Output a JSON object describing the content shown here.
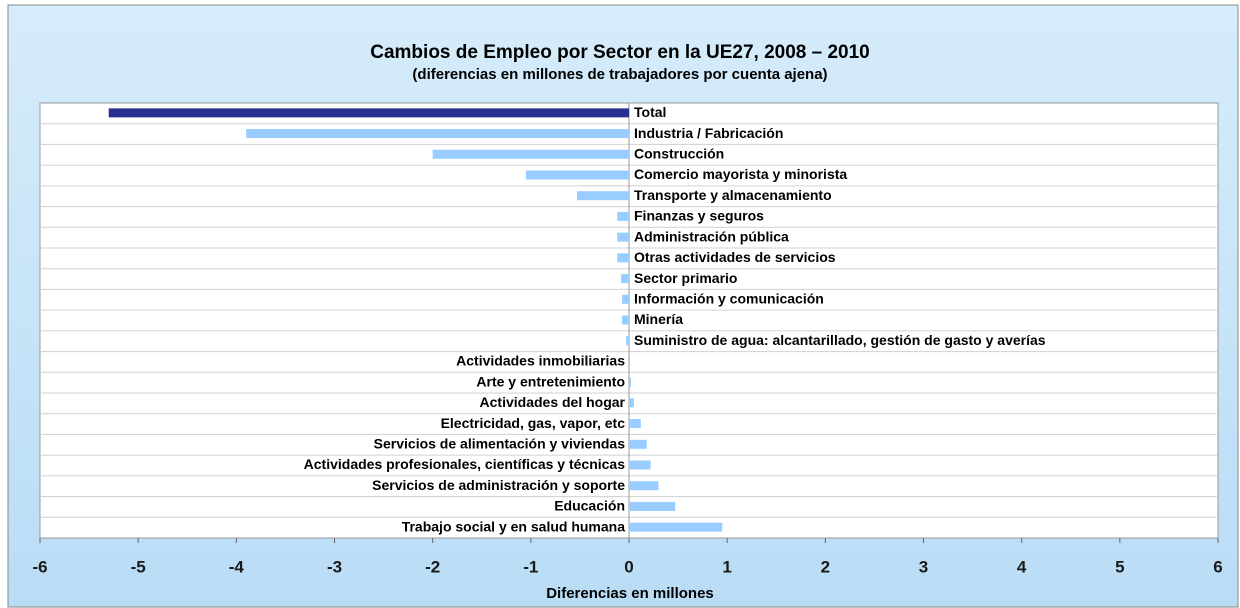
{
  "chart_data": {
    "type": "barh",
    "title": "Cambios de Empleo por Sector en la UE27, 2008 – 2010",
    "subtitle": "(diferencias en millones de trabajadores por cuenta ajena)",
    "xlabel": "Diferencias en millones",
    "categories": [
      "Total",
      "Industria / Fabricación",
      "Construcción",
      "Comercio mayorista y minorista",
      "Transporte y almacenamiento",
      "Finanzas y seguros",
      "Administración pública",
      "Otras actividades de servicios",
      "Sector primario",
      "Información y comunicación",
      "Minería",
      "Suministro de agua: alcantarillado, gestión de gasto y averías",
      "Actividades inmobiliarias",
      "Arte y entretenimiento",
      "Actividades del hogar",
      "Electricidad, gas, vapor, etc",
      "Servicios de alimentación y viviendas",
      "Actividades profesionales, científicas y  técnicas",
      "Servicios de administración y soporte",
      "Educación",
      "Trabajo social y en salud humana"
    ],
    "values": [
      -5.3,
      -3.9,
      -2.0,
      -1.05,
      -0.53,
      -0.12,
      -0.12,
      -0.12,
      -0.08,
      -0.07,
      -0.07,
      -0.03,
      0.01,
      0.02,
      0.05,
      0.12,
      0.18,
      0.22,
      0.3,
      0.47,
      0.95
    ],
    "colors": [
      "#2b2f8f",
      "#99ccff",
      "#99ccff",
      "#99ccff",
      "#99ccff",
      "#99ccff",
      "#99ccff",
      "#99ccff",
      "#99ccff",
      "#99ccff",
      "#99ccff",
      "#99ccff",
      "#99ccff",
      "#99ccff",
      "#99ccff",
      "#99ccff",
      "#99ccff",
      "#99ccff",
      "#99ccff",
      "#99ccff",
      "#99ccff"
    ],
    "xlim": [
      -6,
      6
    ],
    "xticks": [
      -6,
      -5,
      -4,
      -3,
      -2,
      -1,
      0,
      1,
      2,
      3,
      4,
      5,
      6
    ],
    "grid": true
  }
}
